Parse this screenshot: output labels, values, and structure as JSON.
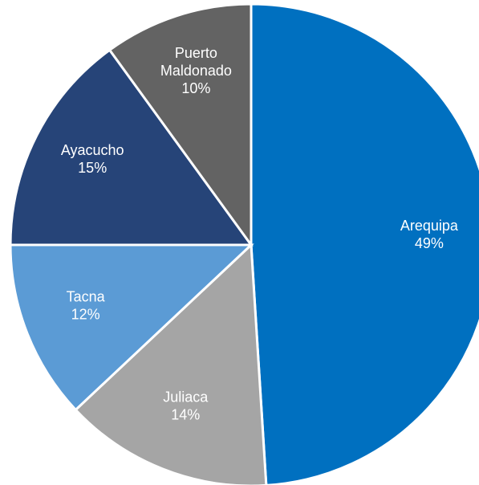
{
  "chart_data": {
    "type": "pie",
    "categories": [
      "Arequipa",
      "Juliaca",
      "Tacna",
      "Ayacucho",
      "Puerto Maldonado"
    ],
    "values": [
      49,
      14,
      12,
      15,
      10
    ],
    "value_labels": [
      "49%",
      "14%",
      "12%",
      "15%",
      "10%"
    ],
    "colors": [
      "#0070c0",
      "#a5a5a5",
      "#5b9bd5",
      "#264478",
      "#636363"
    ]
  }
}
